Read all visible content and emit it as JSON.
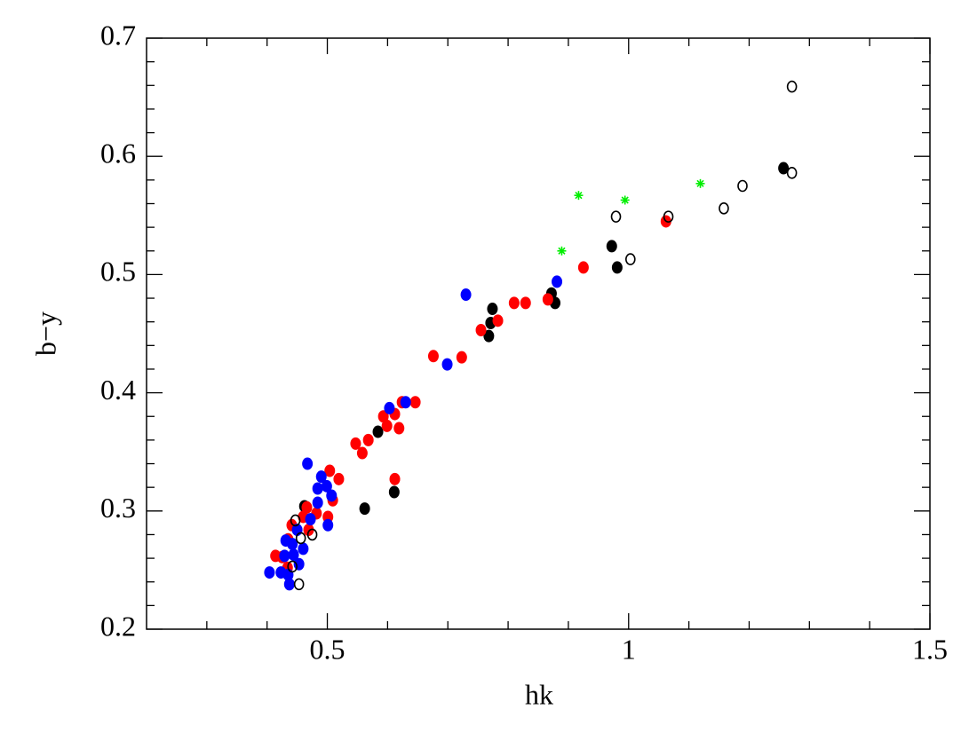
{
  "chart_data": {
    "type": "scatter",
    "x_label": "hk",
    "y_label": "b−y",
    "xlim": [
      0.2,
      1.5
    ],
    "ylim": [
      0.2,
      0.7
    ],
    "xticks": [
      0.5,
      1,
      1.5
    ],
    "yticks": [
      0.2,
      0.3,
      0.4,
      0.5,
      0.6,
      0.7
    ],
    "xminorticks": [
      0.3,
      0.4,
      0.6,
      0.7,
      0.8,
      0.9,
      1.1,
      1.2,
      1.3,
      1.4
    ],
    "yminorticks": [
      0.22,
      0.24,
      0.26,
      0.28,
      0.32,
      0.34,
      0.36,
      0.38,
      0.42,
      0.44,
      0.46,
      0.48,
      0.52,
      0.54,
      0.56,
      0.58,
      0.62,
      0.64,
      0.66,
      0.68
    ],
    "series": [
      {
        "color": "#000000",
        "marker": "filled",
        "x": [
          1.257,
          0.972,
          0.981,
          0.872,
          0.878,
          0.774,
          0.771,
          0.768,
          0.584,
          0.562,
          0.611,
          0.462
        ],
        "y": [
          0.59,
          0.524,
          0.506,
          0.484,
          0.476,
          0.471,
          0.459,
          0.448,
          0.367,
          0.302,
          0.316,
          0.304
        ]
      },
      {
        "color": "#ff0000",
        "marker": "filled",
        "x": [
          1.062,
          0.925,
          0.866,
          0.829,
          0.81,
          0.783,
          0.755,
          0.723,
          0.676,
          0.646,
          0.624,
          0.612,
          0.593,
          0.619,
          0.599,
          0.568,
          0.547,
          0.558,
          0.612,
          0.519,
          0.504,
          0.509,
          0.501,
          0.482,
          0.46,
          0.441,
          0.435,
          0.425,
          0.414,
          0.434,
          0.469,
          0.466
        ],
        "y": [
          0.545,
          0.506,
          0.479,
          0.476,
          0.476,
          0.461,
          0.453,
          0.43,
          0.431,
          0.392,
          0.392,
          0.382,
          0.38,
          0.37,
          0.372,
          0.36,
          0.357,
          0.349,
          0.327,
          0.327,
          0.334,
          0.309,
          0.295,
          0.298,
          0.295,
          0.288,
          0.276,
          0.261,
          0.262,
          0.252,
          0.284,
          0.303
        ]
      },
      {
        "color": "#0000ff",
        "marker": "filled",
        "x": [
          0.881,
          0.73,
          0.699,
          0.63,
          0.603,
          0.467,
          0.49,
          0.499,
          0.484,
          0.507,
          0.484,
          0.472,
          0.501,
          0.45,
          0.46,
          0.442,
          0.431,
          0.429,
          0.453,
          0.435,
          0.423,
          0.404,
          0.437,
          0.444
        ],
        "y": [
          0.494,
          0.483,
          0.424,
          0.392,
          0.387,
          0.34,
          0.329,
          0.321,
          0.319,
          0.313,
          0.307,
          0.293,
          0.288,
          0.284,
          0.268,
          0.272,
          0.275,
          0.262,
          0.255,
          0.246,
          0.248,
          0.248,
          0.238,
          0.263
        ]
      },
      {
        "color": "#000000",
        "marker": "open",
        "x": [
          1.271,
          1.271,
          1.189,
          1.158,
          0.979,
          1.066,
          1.003,
          0.447,
          0.456,
          0.475,
          0.453,
          0.442
        ],
        "y": [
          0.659,
          0.586,
          0.575,
          0.556,
          0.549,
          0.549,
          0.513,
          0.292,
          0.277,
          0.28,
          0.238,
          0.253
        ]
      },
      {
        "color": "#00ee00",
        "marker": "star",
        "x": [
          0.917,
          0.994,
          1.119,
          0.889
        ],
        "y": [
          0.567,
          0.563,
          0.577,
          0.52
        ]
      }
    ]
  }
}
